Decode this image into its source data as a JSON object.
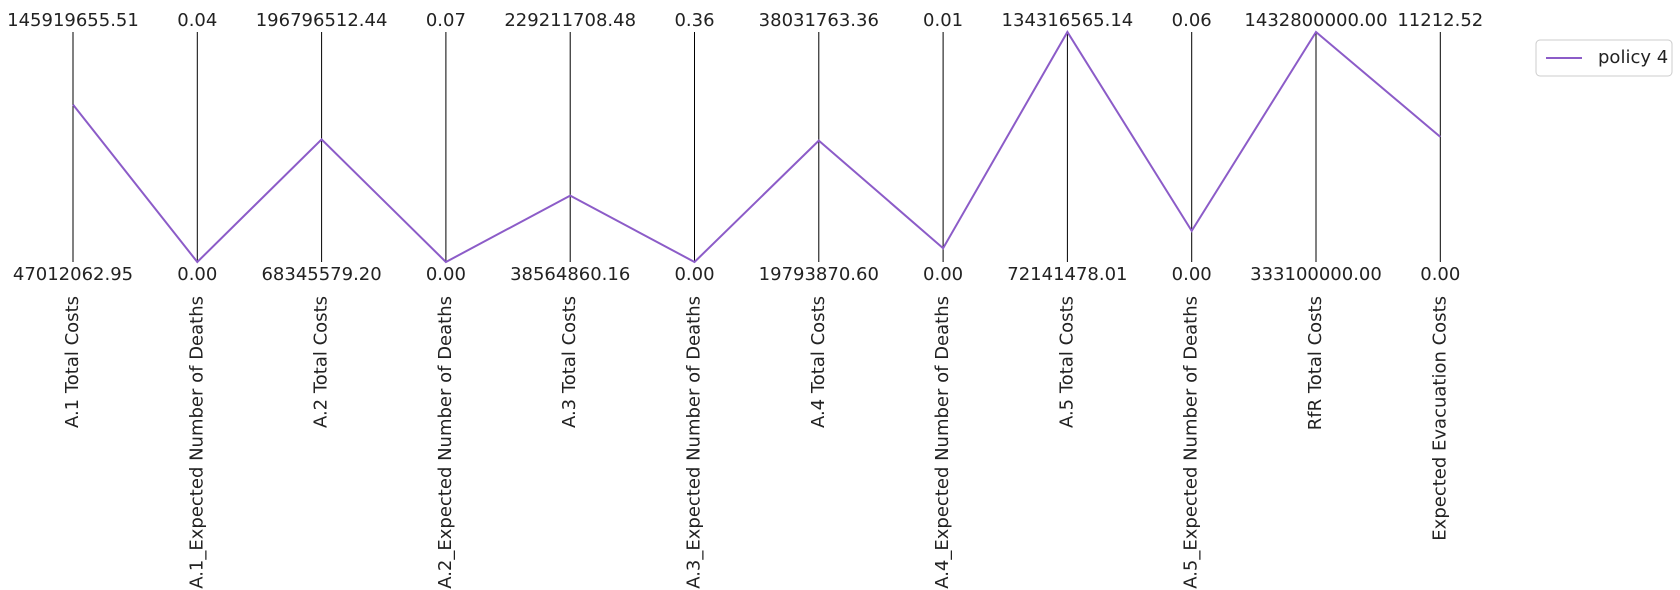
{
  "chart_data": {
    "type": "line",
    "subtype": "parallel-coordinates",
    "axes": [
      {
        "name": "A.1 Total Costs",
        "min_label": "47012062.95",
        "max_label": "145919655.51",
        "min": 47012062.95,
        "max": 145919655.51
      },
      {
        "name": "A.1_Expected Number of Deaths",
        "min_label": "0.00",
        "max_label": "0.04",
        "min": 0.0,
        "max": 0.04
      },
      {
        "name": "A.2 Total Costs",
        "min_label": "68345579.20",
        "max_label": "196796512.44",
        "min": 68345579.2,
        "max": 196796512.44
      },
      {
        "name": "A.2_Expected Number of Deaths",
        "min_label": "0.00",
        "max_label": "0.07",
        "min": 0.0,
        "max": 0.07
      },
      {
        "name": "A.3 Total Costs",
        "min_label": "38564860.16",
        "max_label": "229211708.48",
        "min": 38564860.16,
        "max": 229211708.48
      },
      {
        "name": "A.3_Expected Number of Deaths",
        "min_label": "0.00",
        "max_label": "0.36",
        "min": 0.0,
        "max": 0.36
      },
      {
        "name": "A.4 Total Costs",
        "min_label": "19793870.60",
        "max_label": "38031763.36",
        "min": 19793870.6,
        "max": 38031763.36
      },
      {
        "name": "A.4_Expected Number of Deaths",
        "min_label": "0.00",
        "max_label": "0.01",
        "min": 0.0,
        "max": 0.01
      },
      {
        "name": "A.5 Total Costs",
        "min_label": "72141478.01",
        "max_label": "134316565.14",
        "min": 72141478.01,
        "max": 134316565.14
      },
      {
        "name": "A.5_Expected Number of Deaths",
        "min_label": "0.00",
        "max_label": "0.06",
        "min": 0.0,
        "max": 0.06
      },
      {
        "name": "RfR Total Costs",
        "min_label": "333100000.00",
        "max_label": "1432800000.00",
        "min": 333100000.0,
        "max": 1432800000.0
      },
      {
        "name": "Expected Evacuation Costs",
        "min_label": "0.00",
        "max_label": "11212.52",
        "min": 0.0,
        "max": 11212.52
      }
    ],
    "series": [
      {
        "name": "policy 4",
        "color": "#8c5cc8",
        "values": [
          114720000,
          0.0,
          136800000,
          0.0,
          93600000,
          0.0,
          29420000,
          0.0006,
          134316565.14,
          0.0081,
          1432800000.0,
          6100
        ]
      }
    ],
    "legend_position": "top-right",
    "grid": false
  }
}
